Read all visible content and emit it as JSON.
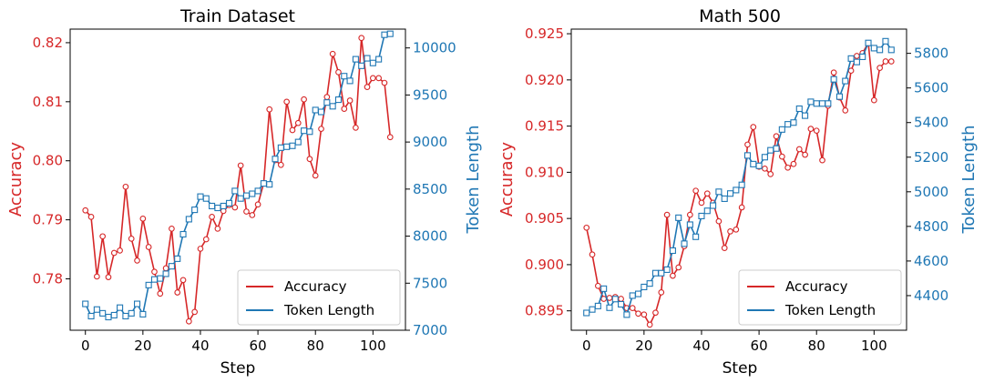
{
  "colors": {
    "accuracy": "#d62728",
    "tokens": "#1f77b4"
  },
  "chart_data": [
    {
      "type": "line",
      "title": "Train Dataset",
      "xlabel": "Step",
      "ylabel_left": "Accuracy",
      "ylabel_right": "Token Length",
      "x_ticks": [
        "0",
        "20",
        "40",
        "60",
        "80",
        "100"
      ],
      "y_left_ticks": [
        "0.78",
        "0.79",
        "0.80",
        "0.81",
        "0.82"
      ],
      "y_right_ticks": [
        "7000",
        "7500",
        "8000",
        "8500",
        "9000",
        "9500",
        "10000"
      ],
      "xlim": [
        -5.3,
        111.3
      ],
      "ylim_left": [
        0.7713,
        0.8223
      ],
      "ylim_right": [
        7000,
        10200
      ],
      "legend": [
        "Accuracy",
        "Token Length"
      ],
      "legend_position": "lower-right",
      "x": [
        0,
        2,
        4,
        6,
        8,
        10,
        12,
        14,
        16,
        18,
        20,
        22,
        24,
        26,
        28,
        30,
        32,
        34,
        36,
        38,
        40,
        42,
        44,
        46,
        48,
        50,
        52,
        54,
        56,
        58,
        60,
        62,
        64,
        66,
        68,
        70,
        72,
        74,
        76,
        78,
        80,
        82,
        84,
        86,
        88,
        90,
        92,
        94,
        96,
        98,
        100,
        102,
        104,
        106
      ],
      "series": [
        {
          "name": "Accuracy",
          "axis": "left",
          "values": [
            0.7916,
            0.7905,
            0.7804,
            0.7872,
            0.7803,
            0.7844,
            0.7848,
            0.7956,
            0.7868,
            0.7831,
            0.7902,
            0.7854,
            0.7812,
            0.7775,
            0.7818,
            0.7885,
            0.7777,
            0.7798,
            0.7728,
            0.7744,
            0.7851,
            0.7867,
            0.7905,
            0.7885,
            0.7915,
            0.7925,
            0.7921,
            0.7992,
            0.7914,
            0.7908,
            0.7926,
            0.7962,
            0.8087,
            0.8001,
            0.7993,
            0.81,
            0.8052,
            0.8064,
            0.8104,
            0.8003,
            0.7975,
            0.8054,
            0.8108,
            0.8181,
            0.815,
            0.8088,
            0.8102,
            0.8056,
            0.8208,
            0.8125,
            0.814,
            0.814,
            0.8132,
            0.804
          ]
        },
        {
          "name": "Token Length",
          "axis": "right",
          "values": [
            7280,
            7150,
            7220,
            7180,
            7140,
            7160,
            7240,
            7150,
            7180,
            7280,
            7170,
            7480,
            7540,
            7550,
            7600,
            7680,
            7760,
            8020,
            8180,
            8280,
            8420,
            8400,
            8320,
            8300,
            8320,
            8350,
            8480,
            8400,
            8430,
            8450,
            8480,
            8560,
            8550,
            8820,
            8940,
            8950,
            8960,
            9000,
            9120,
            9110,
            9340,
            9320,
            9420,
            9380,
            9450,
            9700,
            9650,
            9880,
            9810,
            9890,
            9840,
            9880,
            10140,
            10150
          ]
        }
      ]
    },
    {
      "type": "line",
      "title": "Math 500",
      "xlabel": "Step",
      "ylabel_left": "Accuracy",
      "ylabel_right": "Token Length",
      "x_ticks": [
        "0",
        "20",
        "40",
        "60",
        "80",
        "100"
      ],
      "y_left_ticks": [
        "0.895",
        "0.900",
        "0.905",
        "0.910",
        "0.915",
        "0.920",
        "0.925"
      ],
      "y_right_ticks": [
        "4400",
        "4600",
        "4800",
        "5000",
        "5200",
        "5400",
        "5600",
        "5800"
      ],
      "xlim": [
        -5.3,
        111.3
      ],
      "ylim_left": [
        0.8929,
        0.9255
      ],
      "ylim_right": [
        4200,
        5940
      ],
      "legend": [
        "Accuracy",
        "Token Length"
      ],
      "legend_position": "lower-right",
      "x": [
        0,
        2,
        4,
        6,
        8,
        10,
        12,
        14,
        16,
        18,
        20,
        22,
        24,
        26,
        28,
        30,
        32,
        34,
        36,
        38,
        40,
        42,
        44,
        46,
        48,
        50,
        52,
        54,
        56,
        58,
        60,
        62,
        64,
        66,
        68,
        70,
        72,
        74,
        76,
        78,
        80,
        82,
        84,
        86,
        88,
        90,
        92,
        94,
        96,
        98,
        100,
        102,
        104,
        106
      ],
      "series": [
        {
          "name": "Accuracy",
          "axis": "left",
          "values": [
            0.904,
            0.9011,
            0.8977,
            0.8963,
            0.8964,
            0.8965,
            0.8963,
            0.8953,
            0.8953,
            0.8947,
            0.8946,
            0.8935,
            0.8948,
            0.897,
            0.9054,
            0.8988,
            0.8997,
            0.902,
            0.9054,
            0.908,
            0.9067,
            0.9077,
            0.9067,
            0.9047,
            0.9018,
            0.9036,
            0.9038,
            0.9062,
            0.913,
            0.9149,
            0.9106,
            0.9104,
            0.9098,
            0.9139,
            0.9117,
            0.9105,
            0.9109,
            0.9125,
            0.9119,
            0.9147,
            0.9145,
            0.9113,
            0.9172,
            0.9208,
            0.9181,
            0.9167,
            0.921,
            0.9226,
            0.9229,
            0.924,
            0.9178,
            0.9213,
            0.922,
            0.922
          ]
        },
        {
          "name": "Token Length",
          "axis": "right",
          "values": [
            4300,
            4320,
            4340,
            4440,
            4330,
            4380,
            4350,
            4290,
            4400,
            4410,
            4450,
            4470,
            4530,
            4530,
            4550,
            4660,
            4850,
            4700,
            4810,
            4740,
            4860,
            4890,
            4920,
            5000,
            4960,
            4990,
            5010,
            5040,
            5210,
            5160,
            5150,
            5200,
            5240,
            5250,
            5360,
            5390,
            5400,
            5480,
            5440,
            5520,
            5510,
            5510,
            5510,
            5650,
            5550,
            5640,
            5770,
            5750,
            5780,
            5860,
            5830,
            5820,
            5870,
            5820
          ]
        }
      ]
    }
  ]
}
